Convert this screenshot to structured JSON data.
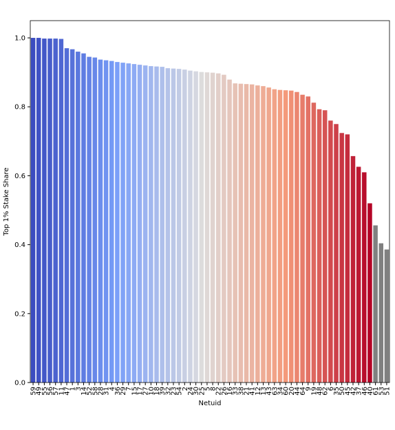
{
  "chart_data": {
    "type": "bar",
    "x_label": "Netuid",
    "y_label": "Top 1% Stake Share",
    "categories": [
      "59",
      "49",
      "55",
      "56",
      "57",
      "11",
      "47",
      "1",
      "3",
      "14",
      "52",
      "58",
      "28",
      "31",
      "4",
      "36",
      "29",
      "7",
      "15",
      "17",
      "27",
      "10",
      "18",
      "39",
      "32",
      "23",
      "54",
      "2",
      "24",
      "30",
      "25",
      "5",
      "8",
      "22",
      "26",
      "16",
      "33",
      "38",
      "21",
      "41",
      "12",
      "13",
      "43",
      "63",
      "34",
      "60",
      "20",
      "44",
      "64",
      "9",
      "19",
      "48",
      "62",
      "6",
      "35",
      "50",
      "45",
      "42",
      "37",
      "46",
      "40",
      "61",
      "53",
      "51"
    ],
    "values": [
      1.0,
      1.0,
      0.998,
      0.998,
      0.998,
      0.997,
      0.97,
      0.967,
      0.96,
      0.955,
      0.945,
      0.943,
      0.937,
      0.935,
      0.933,
      0.93,
      0.928,
      0.926,
      0.924,
      0.922,
      0.92,
      0.918,
      0.917,
      0.916,
      0.912,
      0.911,
      0.91,
      0.908,
      0.905,
      0.903,
      0.901,
      0.9,
      0.899,
      0.897,
      0.893,
      0.879,
      0.868,
      0.867,
      0.866,
      0.865,
      0.862,
      0.86,
      0.856,
      0.851,
      0.849,
      0.848,
      0.847,
      0.843,
      0.835,
      0.83,
      0.812,
      0.793,
      0.79,
      0.76,
      0.75,
      0.724,
      0.72,
      0.657,
      0.626,
      0.61,
      0.52,
      0.456,
      0.404,
      0.386
    ],
    "colors": [
      "#3b4cc0",
      "#3f51c4",
      "#4357c8",
      "#475ccb",
      "#4b62cf",
      "#4f67d3",
      "#536dd7",
      "#5772da",
      "#5b78de",
      "#5f7de2",
      "#6483e6",
      "#6888e9",
      "#6c8eed",
      "#7093f1",
      "#7499f5",
      "#7b9ff9",
      "#81a3f7",
      "#88a7f5",
      "#8eabf4",
      "#95aff2",
      "#9bb3f0",
      "#a1b7ee",
      "#a8bbec",
      "#aebfeb",
      "#b5c3e9",
      "#bbc7e7",
      "#c1cbe5",
      "#c8cfe3",
      "#ced3e2",
      "#d5d7e0",
      "#dddcdc",
      "#dfd8d6",
      "#e0d3cf",
      "#e2cfc9",
      "#e3cac2",
      "#e5c6bc",
      "#e6c2b5",
      "#e8bdaf",
      "#e9b9a8",
      "#ebb4a2",
      "#ecb09b",
      "#eeac95",
      "#efa78e",
      "#f1a388",
      "#f29e81",
      "#f49a7b",
      "#f09075",
      "#eb8670",
      "#e77c6a",
      "#e37265",
      "#de685f",
      "#da5e59",
      "#d65454",
      "#d24a4e",
      "#cd4049",
      "#c93643",
      "#c52c3d",
      "#c02238",
      "#bc1832",
      "#b80e2c",
      "#b40426",
      "#808080",
      "#808080",
      "#808080"
    ],
    "ylim": [
      0,
      1.05
    ],
    "yticks": [
      {
        "value": 0,
        "label": "0.0"
      },
      0.2,
      0.4,
      0.6,
      0.8,
      {
        "value": 1,
        "label": "1.0"
      }
    ],
    "grid": false
  }
}
